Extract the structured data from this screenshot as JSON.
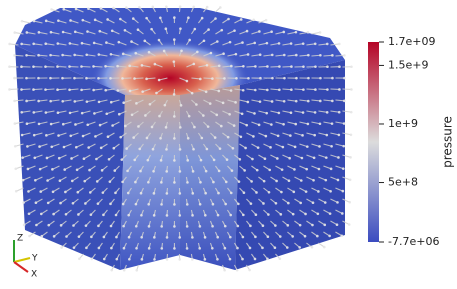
{
  "colorbar": {
    "title": "pressure",
    "range": [
      -7700000,
      1700000000
    ],
    "ticks": [
      {
        "value": 1700000000,
        "label": "1.7e+09"
      },
      {
        "value": 1500000000,
        "label": "1.5e+9"
      },
      {
        "value": 1000000000,
        "label": "1e+9"
      },
      {
        "value": 500000000,
        "label": "5e+8"
      },
      {
        "value": -7700000,
        "label": "-7.7e+06"
      }
    ]
  },
  "axes": {
    "z": "Z",
    "y": "Y",
    "x": "X"
  }
}
